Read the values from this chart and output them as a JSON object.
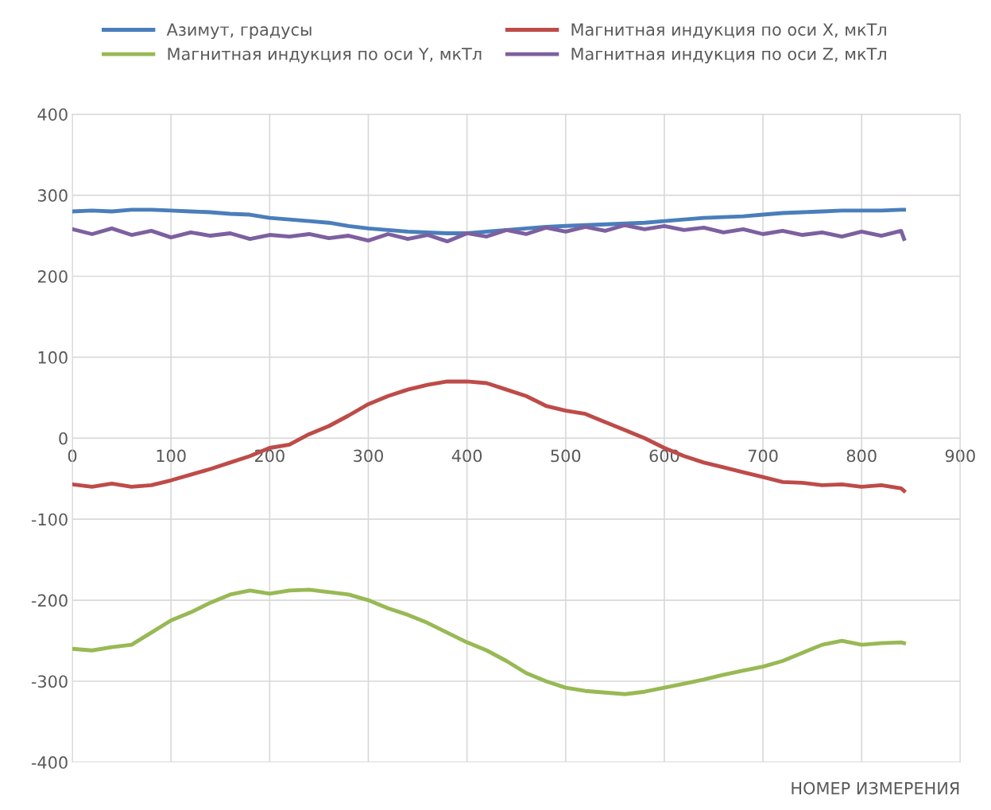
{
  "chart_data": {
    "type": "line",
    "xlabel": "НОМЕР ИЗМЕРЕНИЯ",
    "x": [
      0,
      20,
      40,
      60,
      80,
      100,
      120,
      140,
      160,
      180,
      200,
      220,
      240,
      260,
      280,
      300,
      320,
      340,
      360,
      380,
      400,
      420,
      440,
      460,
      480,
      500,
      520,
      540,
      560,
      580,
      600,
      620,
      640,
      660,
      680,
      700,
      720,
      740,
      760,
      780,
      800,
      820,
      840,
      843
    ],
    "series": [
      {
        "name": "Азимут, градусы",
        "color": "#4a7ebb",
        "values": [
          280,
          281,
          280,
          282,
          282,
          281,
          280,
          279,
          277,
          276,
          272,
          270,
          268,
          266,
          262,
          259,
          257,
          255,
          254,
          253,
          253,
          255,
          257,
          259,
          261,
          262,
          263,
          264,
          265,
          266,
          268,
          270,
          272,
          273,
          274,
          276,
          278,
          279,
          280,
          281,
          281,
          281,
          282,
          282
        ]
      },
      {
        "name": "Магнитная индукция по оси X, мкТл",
        "color": "#be4b48",
        "values": [
          -57,
          -60,
          -56,
          -60,
          -58,
          -52,
          -45,
          -38,
          -30,
          -22,
          -12,
          -8,
          5,
          15,
          28,
          42,
          52,
          60,
          66,
          70,
          70,
          68,
          60,
          52,
          40,
          34,
          30,
          20,
          10,
          0,
          -12,
          -22,
          -30,
          -36,
          -42,
          -48,
          -54,
          -55,
          -58,
          -57,
          -60,
          -58,
          -62,
          -65
        ]
      },
      {
        "name": "Магнитная индукция по оси Y, мкТл",
        "color": "#98b954",
        "values": [
          -260,
          -262,
          -258,
          -255,
          -240,
          -225,
          -215,
          -203,
          -193,
          -188,
          -192,
          -188,
          -187,
          -190,
          -193,
          -200,
          -210,
          -218,
          -228,
          -240,
          -252,
          -262,
          -275,
          -290,
          -300,
          -308,
          -312,
          -314,
          -316,
          -313,
          -308,
          -303,
          -298,
          -292,
          -287,
          -282,
          -275,
          -265,
          -255,
          -250,
          -255,
          -253,
          -252,
          -253
        ]
      },
      {
        "name": "Магнитная индукция по оси Z, мкТл",
        "color": "#7d60a0",
        "values": [
          258,
          252,
          259,
          251,
          256,
          248,
          254,
          250,
          253,
          246,
          251,
          249,
          252,
          247,
          250,
          244,
          252,
          246,
          251,
          243,
          253,
          249,
          257,
          252,
          260,
          255,
          261,
          256,
          263,
          258,
          262,
          257,
          260,
          254,
          258,
          252,
          256,
          251,
          254,
          249,
          255,
          250,
          256,
          246
        ]
      }
    ],
    "xlim": [
      0,
      900
    ],
    "xticks": [
      0,
      100,
      200,
      300,
      400,
      500,
      600,
      700,
      800,
      900
    ],
    "ylim": [
      -400,
      400
    ],
    "yticks": [
      -400,
      -300,
      -200,
      -100,
      0,
      100,
      200,
      300,
      400
    ],
    "grid": true,
    "legend": "top",
    "marker": "none",
    "line_style": "solid"
  }
}
